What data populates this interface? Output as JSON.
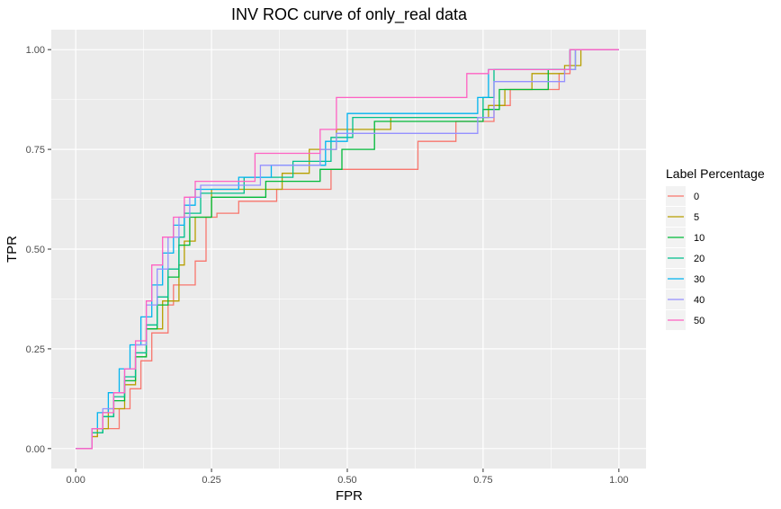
{
  "chart_data": {
    "type": "line",
    "title": "INV ROC curve of only_real data",
    "xlabel": "FPR",
    "ylabel": "TPR",
    "xlim": [
      -0.045,
      1.05
    ],
    "ylim": [
      -0.05,
      1.05
    ],
    "x_ticks": [
      0,
      0.25,
      0.5,
      0.75,
      1
    ],
    "x_tick_labels": [
      "0.00",
      "0.25",
      "0.50",
      "0.75",
      "1.00"
    ],
    "y_ticks": [
      0,
      0.25,
      0.5,
      0.75,
      1
    ],
    "y_tick_labels": [
      "0.00",
      "0.25",
      "0.50",
      "0.75",
      "1.00"
    ],
    "grid": true,
    "legend": {
      "title": "Label Percentage",
      "position": "right"
    },
    "series": [
      {
        "name": "0",
        "color": "#F8766D",
        "points": [
          [
            0,
            0
          ],
          [
            0.03,
            0
          ],
          [
            0.03,
            0.03
          ],
          [
            0.04,
            0.03
          ],
          [
            0.04,
            0.05
          ],
          [
            0.08,
            0.05
          ],
          [
            0.08,
            0.1
          ],
          [
            0.1,
            0.1
          ],
          [
            0.1,
            0.15
          ],
          [
            0.12,
            0.15
          ],
          [
            0.12,
            0.22
          ],
          [
            0.14,
            0.22
          ],
          [
            0.14,
            0.29
          ],
          [
            0.17,
            0.29
          ],
          [
            0.17,
            0.36
          ],
          [
            0.18,
            0.36
          ],
          [
            0.18,
            0.41
          ],
          [
            0.22,
            0.41
          ],
          [
            0.22,
            0.47
          ],
          [
            0.24,
            0.47
          ],
          [
            0.24,
            0.58
          ],
          [
            0.26,
            0.58
          ],
          [
            0.26,
            0.59
          ],
          [
            0.3,
            0.59
          ],
          [
            0.3,
            0.62
          ],
          [
            0.37,
            0.62
          ],
          [
            0.37,
            0.65
          ],
          [
            0.47,
            0.65
          ],
          [
            0.47,
            0.7
          ],
          [
            0.63,
            0.7
          ],
          [
            0.63,
            0.77
          ],
          [
            0.7,
            0.77
          ],
          [
            0.7,
            0.82
          ],
          [
            0.77,
            0.82
          ],
          [
            0.77,
            0.86
          ],
          [
            0.8,
            0.86
          ],
          [
            0.8,
            0.9
          ],
          [
            0.89,
            0.9
          ],
          [
            0.89,
            0.94
          ],
          [
            0.91,
            0.94
          ],
          [
            0.91,
            1
          ],
          [
            1,
            1
          ]
        ]
      },
      {
        "name": "5",
        "color": "#B79F00",
        "points": [
          [
            0,
            0
          ],
          [
            0.03,
            0
          ],
          [
            0.03,
            0.03
          ],
          [
            0.04,
            0.03
          ],
          [
            0.04,
            0.05
          ],
          [
            0.06,
            0.05
          ],
          [
            0.06,
            0.1
          ],
          [
            0.09,
            0.1
          ],
          [
            0.09,
            0.16
          ],
          [
            0.11,
            0.16
          ],
          [
            0.11,
            0.23
          ],
          [
            0.13,
            0.23
          ],
          [
            0.13,
            0.3
          ],
          [
            0.16,
            0.3
          ],
          [
            0.16,
            0.37
          ],
          [
            0.19,
            0.37
          ],
          [
            0.19,
            0.46
          ],
          [
            0.2,
            0.46
          ],
          [
            0.2,
            0.52
          ],
          [
            0.22,
            0.52
          ],
          [
            0.22,
            0.58
          ],
          [
            0.25,
            0.58
          ],
          [
            0.25,
            0.65
          ],
          [
            0.38,
            0.65
          ],
          [
            0.38,
            0.69
          ],
          [
            0.43,
            0.69
          ],
          [
            0.43,
            0.75
          ],
          [
            0.48,
            0.75
          ],
          [
            0.48,
            0.8
          ],
          [
            0.58,
            0.8
          ],
          [
            0.58,
            0.83
          ],
          [
            0.76,
            0.83
          ],
          [
            0.76,
            0.86
          ],
          [
            0.79,
            0.86
          ],
          [
            0.79,
            0.9
          ],
          [
            0.84,
            0.9
          ],
          [
            0.84,
            0.94
          ],
          [
            0.9,
            0.94
          ],
          [
            0.9,
            0.96
          ],
          [
            0.93,
            0.96
          ],
          [
            0.93,
            1
          ],
          [
            1,
            1
          ]
        ]
      },
      {
        "name": "10",
        "color": "#00BA38",
        "points": [
          [
            0,
            0
          ],
          [
            0.03,
            0
          ],
          [
            0.03,
            0.04
          ],
          [
            0.05,
            0.04
          ],
          [
            0.05,
            0.08
          ],
          [
            0.07,
            0.08
          ],
          [
            0.07,
            0.12
          ],
          [
            0.09,
            0.12
          ],
          [
            0.09,
            0.17
          ],
          [
            0.11,
            0.17
          ],
          [
            0.11,
            0.23
          ],
          [
            0.13,
            0.23
          ],
          [
            0.13,
            0.3
          ],
          [
            0.15,
            0.3
          ],
          [
            0.15,
            0.36
          ],
          [
            0.17,
            0.36
          ],
          [
            0.17,
            0.43
          ],
          [
            0.19,
            0.43
          ],
          [
            0.19,
            0.51
          ],
          [
            0.21,
            0.51
          ],
          [
            0.21,
            0.58
          ],
          [
            0.25,
            0.58
          ],
          [
            0.25,
            0.63
          ],
          [
            0.35,
            0.63
          ],
          [
            0.35,
            0.67
          ],
          [
            0.45,
            0.67
          ],
          [
            0.45,
            0.7
          ],
          [
            0.49,
            0.7
          ],
          [
            0.49,
            0.75
          ],
          [
            0.55,
            0.75
          ],
          [
            0.55,
            0.82
          ],
          [
            0.75,
            0.82
          ],
          [
            0.75,
            0.85
          ],
          [
            0.78,
            0.85
          ],
          [
            0.78,
            0.9
          ],
          [
            0.87,
            0.9
          ],
          [
            0.87,
            0.95
          ],
          [
            0.92,
            0.95
          ],
          [
            0.92,
            1
          ],
          [
            1,
            1
          ]
        ]
      },
      {
        "name": "20",
        "color": "#00C08B",
        "points": [
          [
            0,
            0
          ],
          [
            0.03,
            0
          ],
          [
            0.03,
            0.04
          ],
          [
            0.05,
            0.04
          ],
          [
            0.05,
            0.08
          ],
          [
            0.07,
            0.08
          ],
          [
            0.07,
            0.13
          ],
          [
            0.09,
            0.13
          ],
          [
            0.09,
            0.18
          ],
          [
            0.11,
            0.18
          ],
          [
            0.11,
            0.24
          ],
          [
            0.13,
            0.24
          ],
          [
            0.13,
            0.31
          ],
          [
            0.15,
            0.31
          ],
          [
            0.15,
            0.38
          ],
          [
            0.17,
            0.38
          ],
          [
            0.17,
            0.45
          ],
          [
            0.19,
            0.45
          ],
          [
            0.19,
            0.53
          ],
          [
            0.2,
            0.53
          ],
          [
            0.2,
            0.59
          ],
          [
            0.23,
            0.59
          ],
          [
            0.23,
            0.64
          ],
          [
            0.31,
            0.64
          ],
          [
            0.31,
            0.68
          ],
          [
            0.4,
            0.68
          ],
          [
            0.4,
            0.72
          ],
          [
            0.47,
            0.72
          ],
          [
            0.47,
            0.78
          ],
          [
            0.51,
            0.78
          ],
          [
            0.51,
            0.83
          ],
          [
            0.75,
            0.83
          ],
          [
            0.75,
            0.88
          ],
          [
            0.77,
            0.88
          ],
          [
            0.77,
            0.95
          ],
          [
            0.91,
            0.95
          ],
          [
            0.91,
            1
          ],
          [
            1,
            1
          ]
        ]
      },
      {
        "name": "30",
        "color": "#00B4F0",
        "points": [
          [
            0,
            0
          ],
          [
            0.03,
            0
          ],
          [
            0.03,
            0.05
          ],
          [
            0.04,
            0.05
          ],
          [
            0.04,
            0.09
          ],
          [
            0.06,
            0.09
          ],
          [
            0.06,
            0.14
          ],
          [
            0.08,
            0.14
          ],
          [
            0.08,
            0.2
          ],
          [
            0.1,
            0.2
          ],
          [
            0.1,
            0.26
          ],
          [
            0.12,
            0.26
          ],
          [
            0.12,
            0.33
          ],
          [
            0.14,
            0.33
          ],
          [
            0.14,
            0.41
          ],
          [
            0.16,
            0.41
          ],
          [
            0.16,
            0.49
          ],
          [
            0.18,
            0.49
          ],
          [
            0.18,
            0.56
          ],
          [
            0.2,
            0.56
          ],
          [
            0.2,
            0.61
          ],
          [
            0.22,
            0.61
          ],
          [
            0.22,
            0.65
          ],
          [
            0.3,
            0.65
          ],
          [
            0.3,
            0.68
          ],
          [
            0.36,
            0.68
          ],
          [
            0.36,
            0.71
          ],
          [
            0.46,
            0.71
          ],
          [
            0.46,
            0.77
          ],
          [
            0.5,
            0.77
          ],
          [
            0.5,
            0.84
          ],
          [
            0.74,
            0.84
          ],
          [
            0.74,
            0.88
          ],
          [
            0.76,
            0.88
          ],
          [
            0.76,
            0.95
          ],
          [
            0.91,
            0.95
          ],
          [
            0.91,
            1
          ],
          [
            1,
            1
          ]
        ]
      },
      {
        "name": "40",
        "color": "#9590FF",
        "points": [
          [
            0,
            0
          ],
          [
            0.03,
            0
          ],
          [
            0.03,
            0.05
          ],
          [
            0.05,
            0.05
          ],
          [
            0.05,
            0.1
          ],
          [
            0.07,
            0.1
          ],
          [
            0.07,
            0.14
          ],
          [
            0.09,
            0.14
          ],
          [
            0.09,
            0.2
          ],
          [
            0.11,
            0.2
          ],
          [
            0.11,
            0.26
          ],
          [
            0.13,
            0.26
          ],
          [
            0.13,
            0.36
          ],
          [
            0.15,
            0.36
          ],
          [
            0.15,
            0.45
          ],
          [
            0.17,
            0.45
          ],
          [
            0.17,
            0.53
          ],
          [
            0.19,
            0.53
          ],
          [
            0.19,
            0.58
          ],
          [
            0.21,
            0.58
          ],
          [
            0.21,
            0.63
          ],
          [
            0.23,
            0.63
          ],
          [
            0.23,
            0.66
          ],
          [
            0.34,
            0.66
          ],
          [
            0.34,
            0.71
          ],
          [
            0.45,
            0.71
          ],
          [
            0.45,
            0.75
          ],
          [
            0.48,
            0.75
          ],
          [
            0.48,
            0.79
          ],
          [
            0.74,
            0.79
          ],
          [
            0.74,
            0.83
          ],
          [
            0.77,
            0.83
          ],
          [
            0.77,
            0.92
          ],
          [
            0.9,
            0.92
          ],
          [
            0.9,
            0.95
          ],
          [
            0.92,
            0.95
          ],
          [
            0.92,
            1
          ],
          [
            1,
            1
          ]
        ]
      },
      {
        "name": "50",
        "color": "#FF61C3",
        "points": [
          [
            0,
            0
          ],
          [
            0.03,
            0
          ],
          [
            0.03,
            0.05
          ],
          [
            0.05,
            0.05
          ],
          [
            0.05,
            0.09
          ],
          [
            0.07,
            0.09
          ],
          [
            0.07,
            0.14
          ],
          [
            0.09,
            0.14
          ],
          [
            0.09,
            0.2
          ],
          [
            0.11,
            0.2
          ],
          [
            0.11,
            0.27
          ],
          [
            0.13,
            0.27
          ],
          [
            0.13,
            0.37
          ],
          [
            0.14,
            0.37
          ],
          [
            0.14,
            0.46
          ],
          [
            0.16,
            0.46
          ],
          [
            0.16,
            0.53
          ],
          [
            0.18,
            0.53
          ],
          [
            0.18,
            0.58
          ],
          [
            0.2,
            0.58
          ],
          [
            0.2,
            0.63
          ],
          [
            0.22,
            0.63
          ],
          [
            0.22,
            0.67
          ],
          [
            0.33,
            0.67
          ],
          [
            0.33,
            0.74
          ],
          [
            0.45,
            0.74
          ],
          [
            0.45,
            0.8
          ],
          [
            0.48,
            0.8
          ],
          [
            0.48,
            0.88
          ],
          [
            0.72,
            0.88
          ],
          [
            0.72,
            0.94
          ],
          [
            0.76,
            0.94
          ],
          [
            0.76,
            0.95
          ],
          [
            0.91,
            0.95
          ],
          [
            0.91,
            1
          ],
          [
            1,
            1
          ]
        ]
      }
    ]
  }
}
